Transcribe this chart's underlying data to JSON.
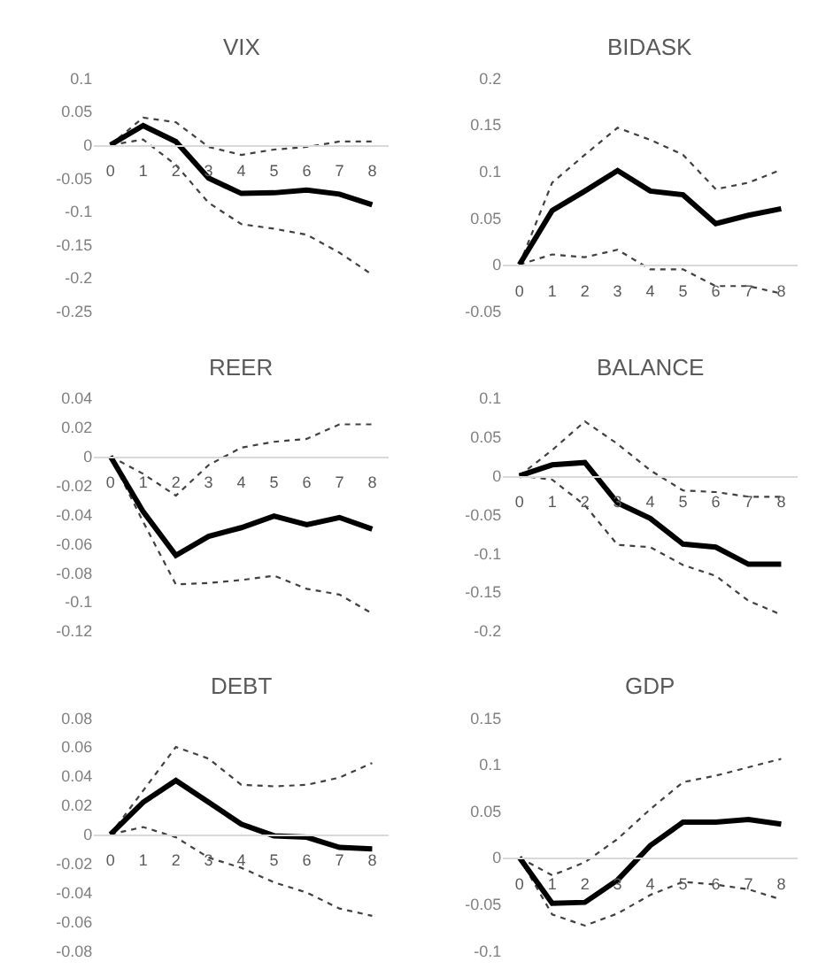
{
  "chart_data": [
    {
      "type": "line",
      "title": "VIX",
      "x": [
        0,
        1,
        2,
        3,
        4,
        5,
        6,
        7,
        8
      ],
      "xlim": [
        -0.5,
        8.5
      ],
      "xticks": [
        0,
        1,
        2,
        3,
        4,
        5,
        6,
        7,
        8
      ],
      "ylim": [
        -0.25,
        0.1
      ],
      "yticks": [
        -0.25,
        -0.2,
        -0.15,
        -0.1,
        -0.05,
        0,
        0.05,
        0.1
      ],
      "series": [
        {
          "color": "#404040",
          "line_style": "dotted",
          "values": [
            0,
            0.041,
            0.034,
            -0.003,
            -0.015,
            -0.007,
            -0.003,
            0.005,
            0.005
          ]
        },
        {
          "color": "#404040",
          "line_style": "dotted",
          "values": [
            0,
            0.008,
            -0.03,
            -0.087,
            -0.119,
            -0.126,
            -0.135,
            -0.162,
            -0.195
          ]
        },
        {
          "color": "#000000",
          "line_style": "solid",
          "values": [
            0,
            0.029,
            0.005,
            -0.05,
            -0.073,
            -0.072,
            -0.068,
            -0.074,
            -0.09
          ]
        }
      ]
    },
    {
      "type": "line",
      "title": "BIDASK",
      "x": [
        0,
        1,
        2,
        3,
        4,
        5,
        6,
        7,
        8
      ],
      "xlim": [
        -0.5,
        8.5
      ],
      "xticks": [
        0,
        1,
        2,
        3,
        4,
        5,
        6,
        7,
        8
      ],
      "ylim": [
        -0.05,
        0.2
      ],
      "yticks": [
        -0.05,
        0,
        0.05,
        0.1,
        0.15,
        0.2
      ],
      "series": [
        {
          "color": "#404040",
          "line_style": "dotted",
          "values": [
            0,
            0.088,
            0.118,
            0.147,
            0.134,
            0.118,
            0.081,
            0.088,
            0.102
          ]
        },
        {
          "color": "#404040",
          "line_style": "dotted",
          "values": [
            0,
            0.011,
            0.008,
            0.016,
            -0.005,
            -0.005,
            -0.023,
            -0.023,
            -0.031
          ]
        },
        {
          "color": "#000000",
          "line_style": "solid",
          "values": [
            0,
            0.058,
            0.079,
            0.101,
            0.079,
            0.075,
            0.044,
            0.053,
            0.06
          ]
        }
      ]
    },
    {
      "type": "line",
      "title": "REER",
      "x": [
        0,
        1,
        2,
        3,
        4,
        5,
        6,
        7,
        8
      ],
      "xlim": [
        -0.5,
        8.5
      ],
      "xticks": [
        0,
        1,
        2,
        3,
        4,
        5,
        6,
        7,
        8
      ],
      "ylim": [
        -0.12,
        0.04
      ],
      "yticks": [
        -0.12,
        -0.1,
        -0.08,
        -0.06,
        -0.04,
        -0.02,
        0,
        0.02,
        0.04
      ],
      "series": [
        {
          "color": "#404040",
          "line_style": "dotted",
          "values": [
            0,
            -0.012,
            -0.027,
            -0.006,
            0.006,
            0.01,
            0.012,
            0.022,
            0.022
          ]
        },
        {
          "color": "#404040",
          "line_style": "dotted",
          "values": [
            0,
            -0.045,
            -0.088,
            -0.087,
            -0.085,
            -0.082,
            -0.091,
            -0.095,
            -0.108
          ]
        },
        {
          "color": "#000000",
          "line_style": "solid",
          "values": [
            0,
            -0.038,
            -0.068,
            -0.055,
            -0.049,
            -0.041,
            -0.047,
            -0.042,
            -0.05
          ]
        }
      ]
    },
    {
      "type": "line",
      "title": "BALANCE",
      "x": [
        0,
        1,
        2,
        3,
        4,
        5,
        6,
        7,
        8
      ],
      "xlim": [
        -0.5,
        8.5
      ],
      "xticks": [
        0,
        1,
        2,
        3,
        4,
        5,
        6,
        7,
        8
      ],
      "ylim": [
        -0.2,
        0.1
      ],
      "yticks": [
        -0.2,
        -0.15,
        -0.1,
        -0.05,
        0,
        0.05,
        0.1
      ],
      "series": [
        {
          "color": "#404040",
          "line_style": "dotted",
          "values": [
            0,
            0.033,
            0.07,
            0.041,
            0.007,
            -0.019,
            -0.021,
            -0.027,
            -0.027
          ]
        },
        {
          "color": "#404040",
          "line_style": "dotted",
          "values": [
            0,
            -0.005,
            -0.038,
            -0.089,
            -0.092,
            -0.115,
            -0.129,
            -0.161,
            -0.179
          ]
        },
        {
          "color": "#000000",
          "line_style": "solid",
          "values": [
            0,
            0.014,
            0.017,
            -0.035,
            -0.055,
            -0.088,
            -0.092,
            -0.114,
            -0.114
          ]
        }
      ]
    },
    {
      "type": "line",
      "title": "DEBT",
      "x": [
        0,
        1,
        2,
        3,
        4,
        5,
        6,
        7,
        8
      ],
      "xlim": [
        -0.5,
        8.5
      ],
      "xticks": [
        0,
        1,
        2,
        3,
        4,
        5,
        6,
        7,
        8
      ],
      "ylim": [
        -0.08,
        0.08
      ],
      "yticks": [
        -0.08,
        -0.06,
        -0.04,
        -0.02,
        0,
        0.02,
        0.04,
        0.06,
        0.08
      ],
      "series": [
        {
          "color": "#404040",
          "line_style": "dotted",
          "values": [
            0,
            0.03,
            0.06,
            0.052,
            0.034,
            0.033,
            0.034,
            0.039,
            0.049
          ]
        },
        {
          "color": "#404040",
          "line_style": "dotted",
          "values": [
            0,
            0.005,
            -0.002,
            -0.016,
            -0.023,
            -0.033,
            -0.04,
            -0.051,
            -0.056
          ]
        },
        {
          "color": "#000000",
          "line_style": "solid",
          "values": [
            0,
            0.022,
            0.037,
            0.022,
            0.007,
            -0.001,
            -0.002,
            -0.009,
            -0.01
          ]
        }
      ]
    },
    {
      "type": "line",
      "title": "GDP",
      "x": [
        0,
        1,
        2,
        3,
        4,
        5,
        6,
        7,
        8
      ],
      "xlim": [
        -0.5,
        8.5
      ],
      "xticks": [
        0,
        1,
        2,
        3,
        4,
        5,
        6,
        7,
        8
      ],
      "ylim": [
        -0.1,
        0.15
      ],
      "yticks": [
        -0.1,
        -0.05,
        0,
        0.05,
        0.1,
        0.15
      ],
      "series": [
        {
          "color": "#404040",
          "line_style": "dotted",
          "values": [
            0,
            -0.019,
            -0.005,
            0.02,
            0.052,
            0.081,
            0.088,
            0.097,
            0.106
          ]
        },
        {
          "color": "#404040",
          "line_style": "dotted",
          "values": [
            0,
            -0.061,
            -0.073,
            -0.06,
            -0.04,
            -0.026,
            -0.029,
            -0.034,
            -0.045
          ]
        },
        {
          "color": "#000000",
          "line_style": "solid",
          "values": [
            0,
            -0.049,
            -0.048,
            -0.024,
            0.013,
            0.038,
            0.038,
            0.041,
            0.036
          ]
        }
      ]
    }
  ]
}
